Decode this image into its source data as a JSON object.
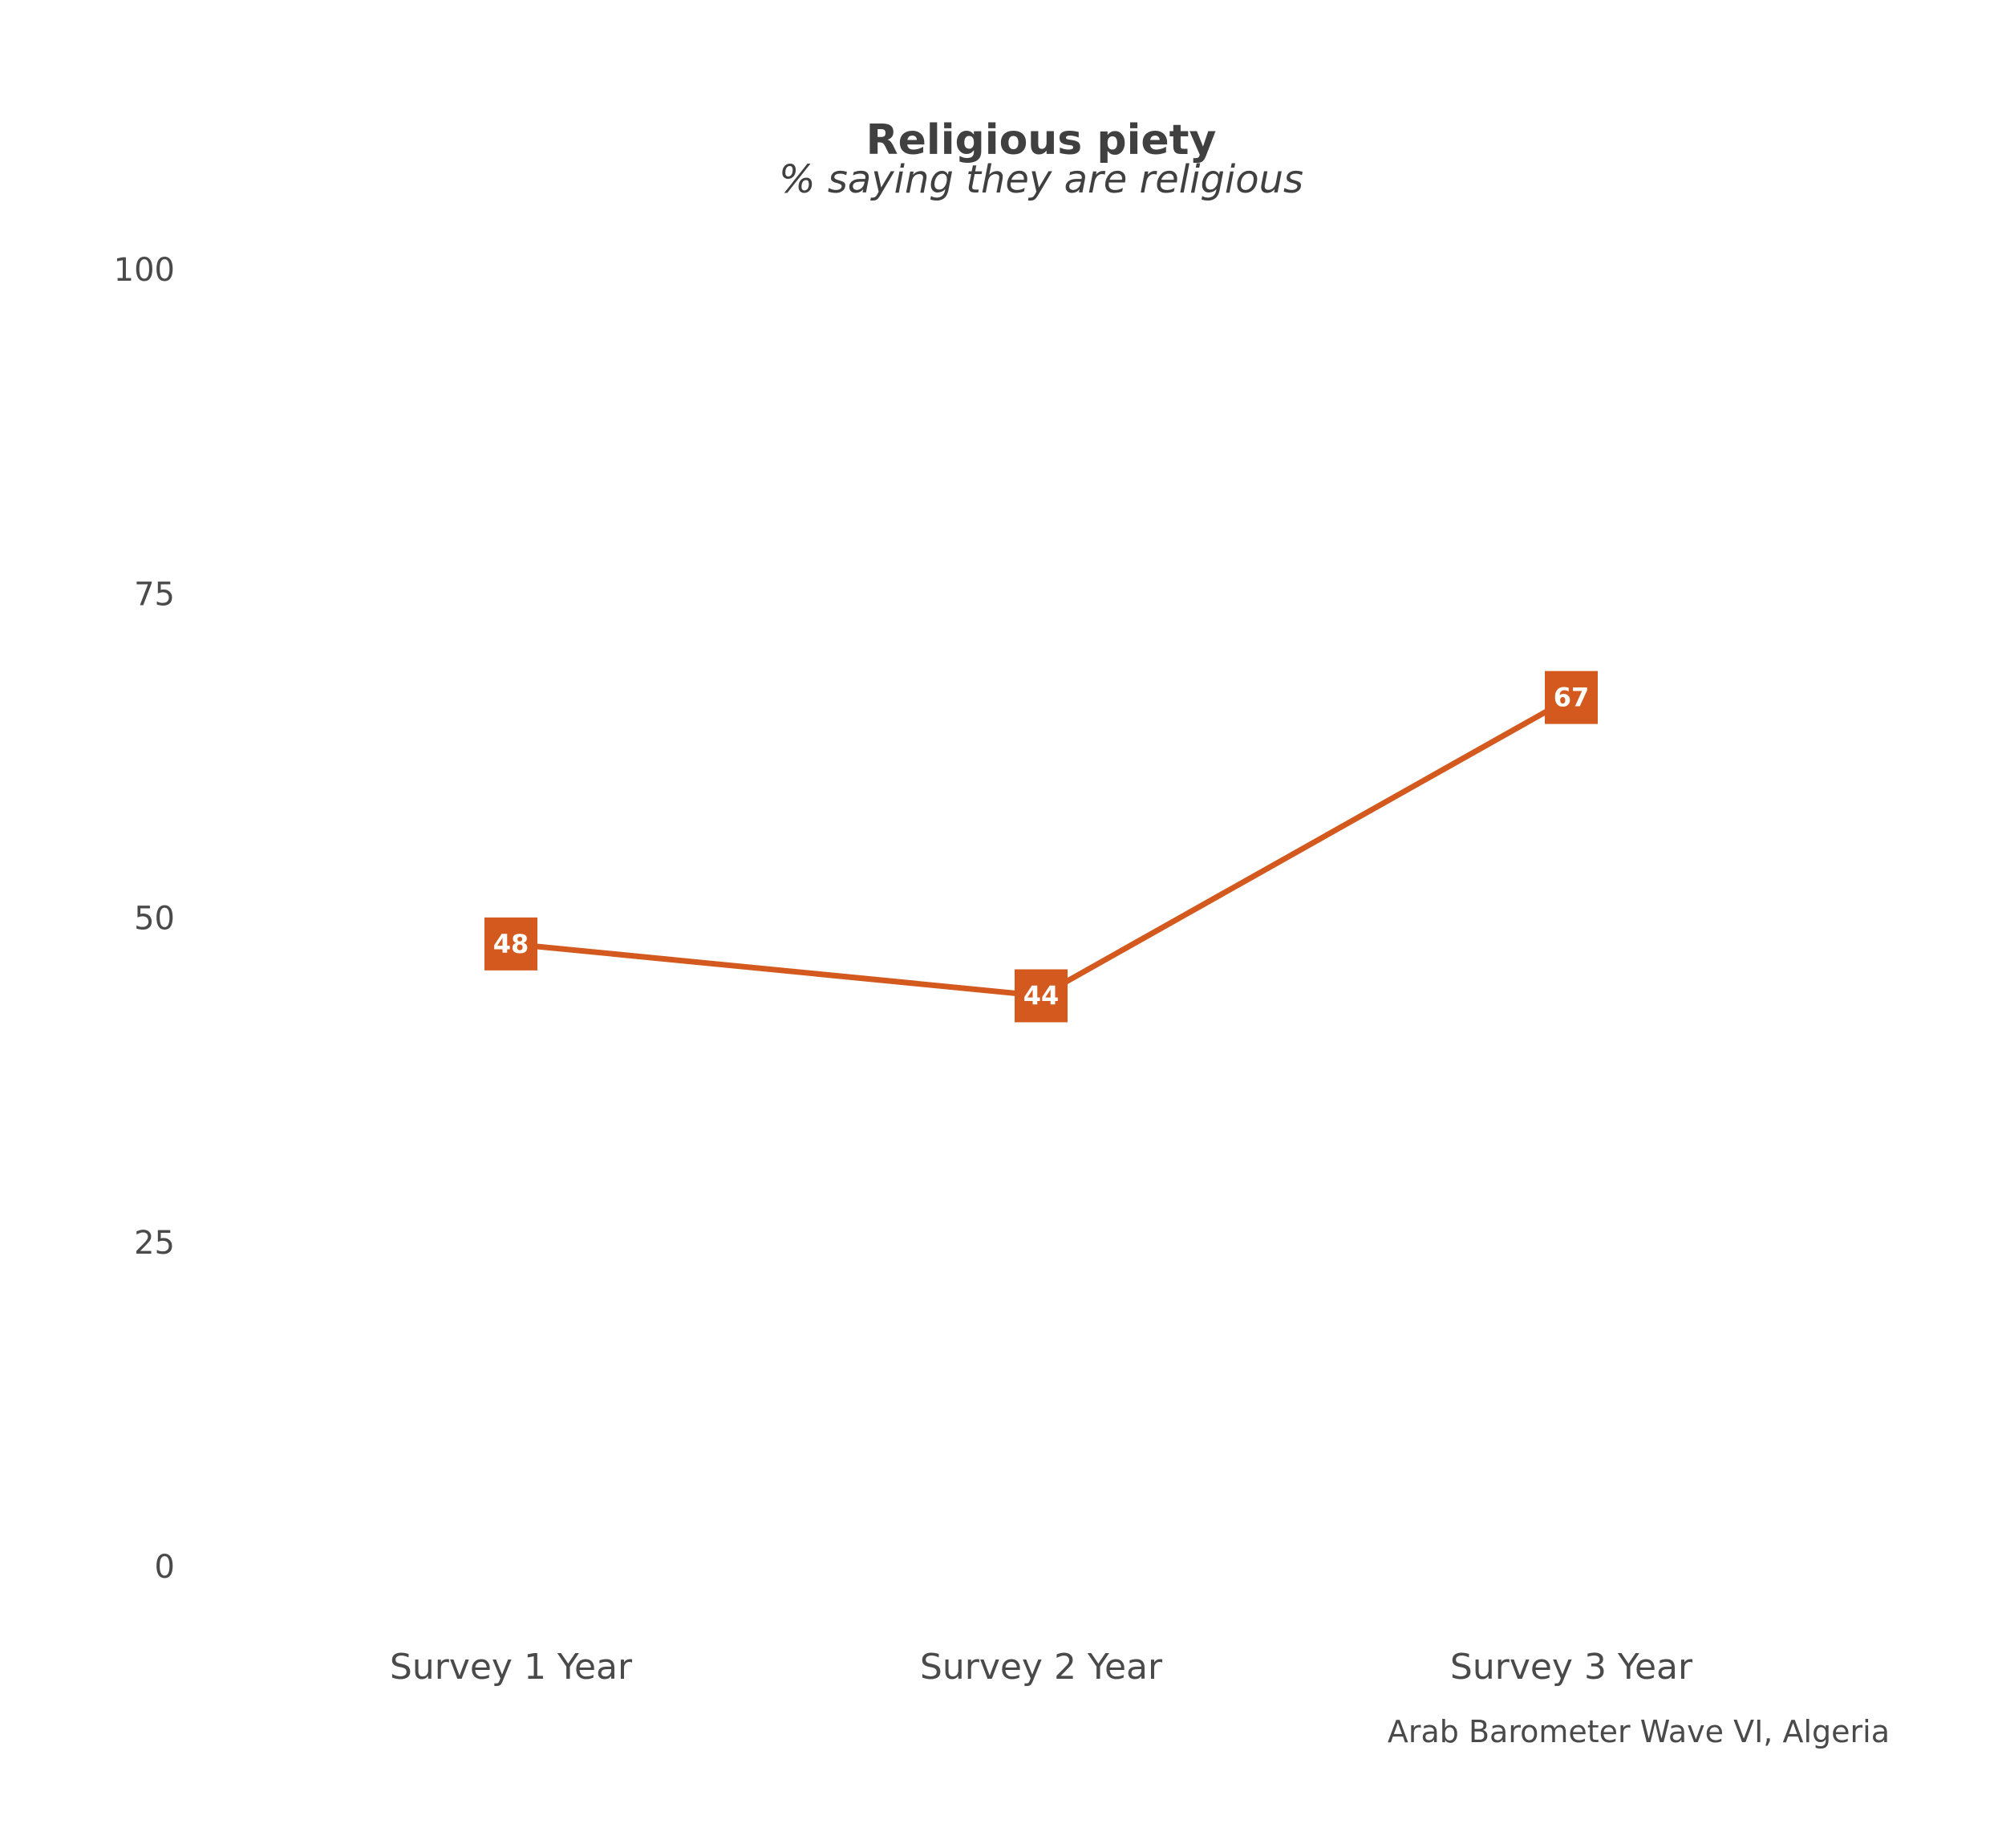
{
  "chart_data": {
    "type": "line",
    "title": "Religious piety",
    "subtitle": "% saying they are religious",
    "categories": [
      "Survey 1 Year",
      "Survey 2 Year",
      "Survey 3 Year"
    ],
    "series": [
      {
        "values": [
          48,
          44,
          67
        ],
        "labels": [
          "48",
          "44",
          "67"
        ],
        "color": "#d4591e"
      }
    ],
    "yticks": [
      {
        "value": 0,
        "label": "0"
      },
      {
        "value": 25,
        "label": "25"
      },
      {
        "value": 50,
        "label": "50"
      },
      {
        "value": 75,
        "label": "75"
      },
      {
        "value": 100,
        "label": "100"
      }
    ],
    "ylim": [
      0,
      100
    ],
    "grid": false,
    "legend": "none",
    "caption": "Arab Barometer Wave VI, Algeria"
  }
}
